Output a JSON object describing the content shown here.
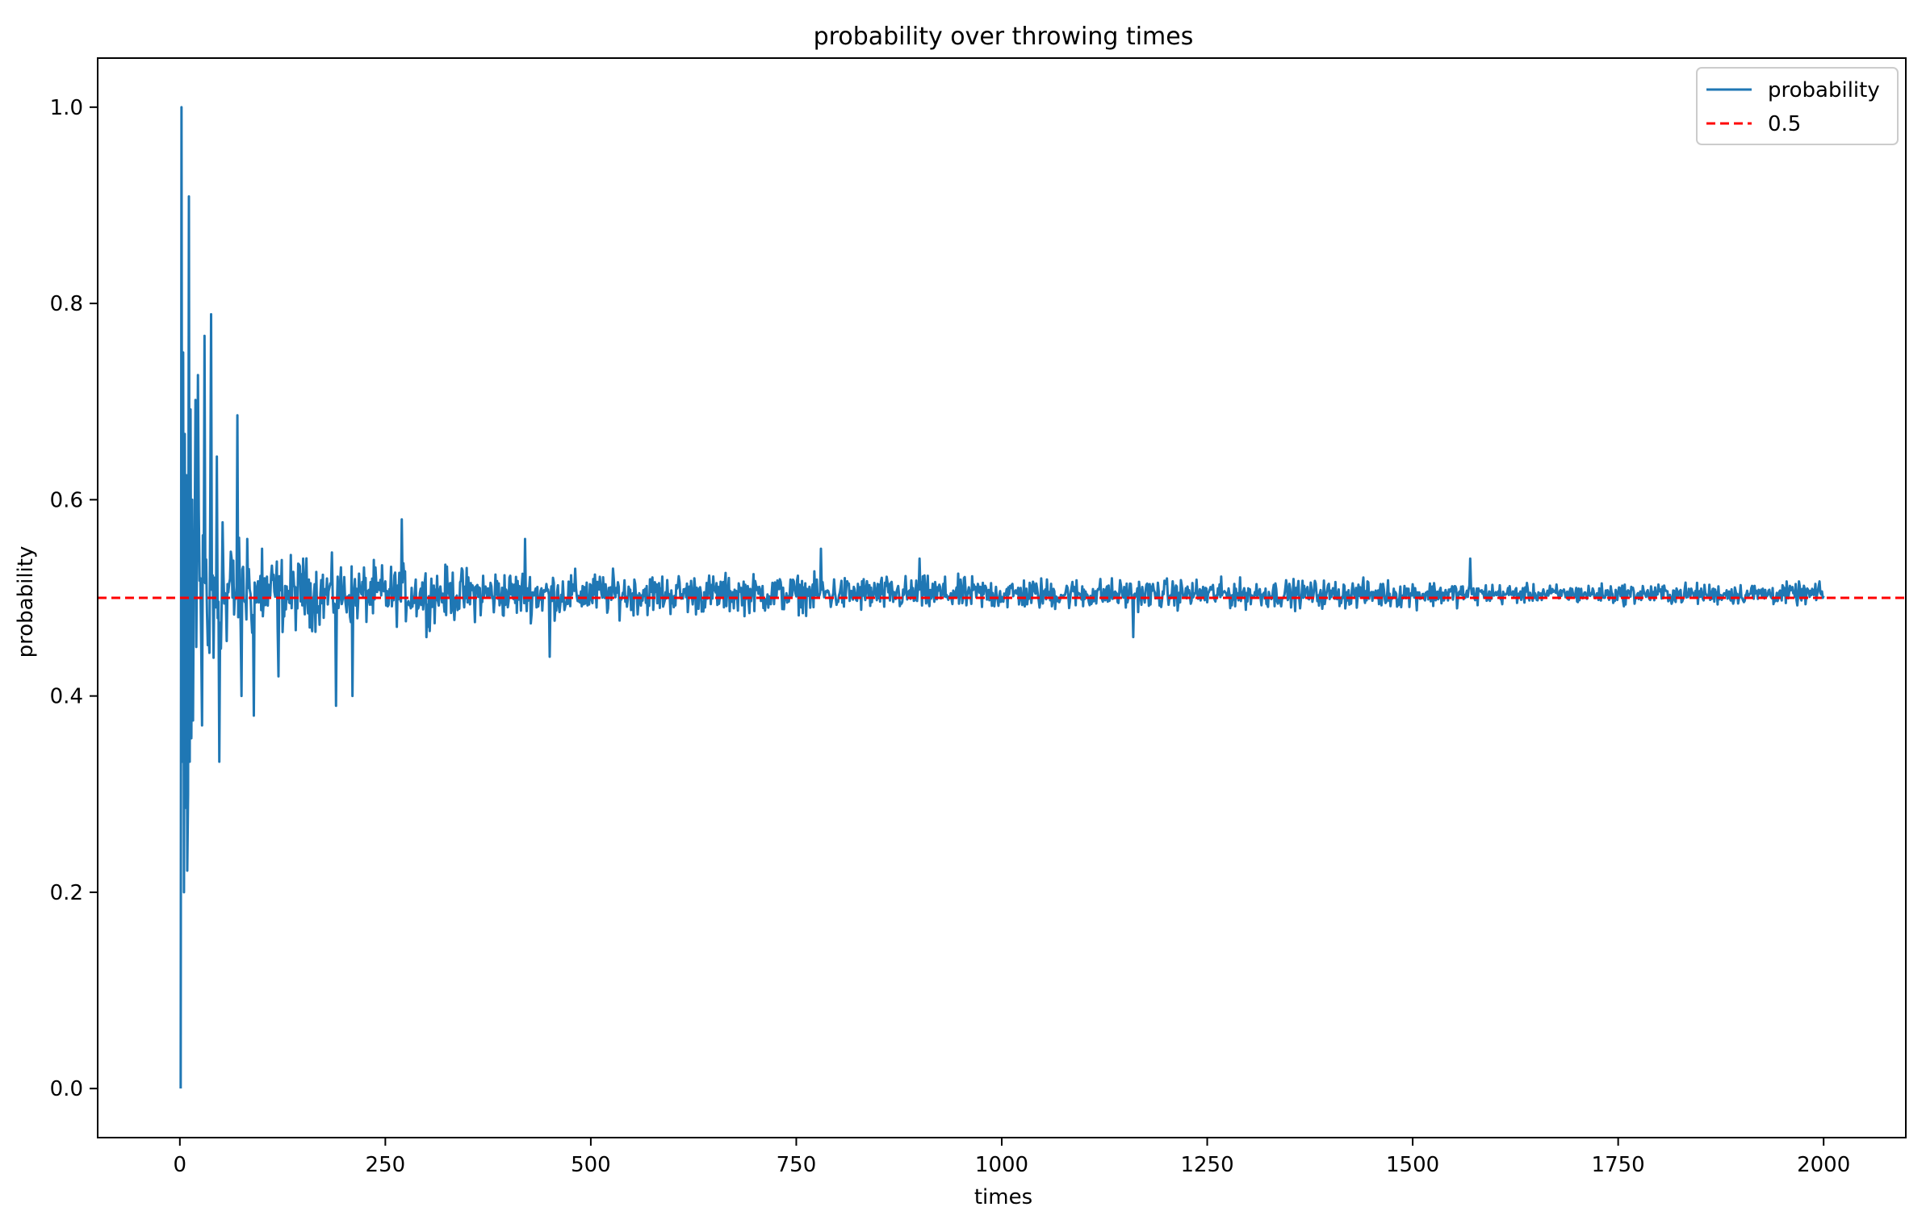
{
  "chart_data": {
    "type": "line",
    "title": "probability over throwing times",
    "xlabel": "times",
    "ylabel": "probability",
    "xlim": [
      -100,
      2100
    ],
    "ylim": [
      -0.05,
      1.05
    ],
    "xticks": [
      0,
      250,
      500,
      750,
      1000,
      1250,
      1500,
      1750,
      2000
    ],
    "xtick_labels": [
      "0",
      "250",
      "500",
      "750",
      "1000",
      "1250",
      "1500",
      "1750",
      "2000"
    ],
    "yticks": [
      0.0,
      0.2,
      0.4,
      0.6,
      0.8,
      1.0
    ],
    "ytick_labels": [
      "0.0",
      "0.2",
      "0.4",
      "0.6",
      "0.8",
      "1.0"
    ],
    "grid": false,
    "legend_position": "top-right",
    "series": [
      {
        "name": "probability",
        "color": "#1f77b4",
        "style": "solid",
        "x_range": [
          1,
          2000
        ],
        "initial_points": [
          [
            1,
            0.0
          ],
          [
            2,
            1.0
          ],
          [
            3,
            0.333
          ],
          [
            4,
            0.75
          ],
          [
            5,
            0.2
          ],
          [
            6,
            0.667
          ],
          [
            7,
            0.286
          ],
          [
            8,
            0.625
          ],
          [
            9,
            0.222
          ],
          [
            10,
            0.3
          ],
          [
            11,
            0.909
          ],
          [
            12,
            0.333
          ],
          [
            13,
            0.692
          ],
          [
            14,
            0.357
          ],
          [
            15,
            0.6
          ],
          [
            16,
            0.375
          ],
          [
            18,
            0.556
          ],
          [
            20,
            0.45
          ],
          [
            22,
            0.727
          ],
          [
            25,
            0.52
          ],
          [
            27,
            0.37
          ],
          [
            30,
            0.767
          ],
          [
            33,
            0.485
          ],
          [
            36,
            0.444
          ],
          [
            38,
            0.789
          ],
          [
            41,
            0.439
          ],
          [
            45,
            0.644
          ],
          [
            48,
            0.333
          ],
          [
            52,
            0.577
          ],
          [
            57,
            0.456
          ],
          [
            63,
            0.54
          ],
          [
            70,
            0.686
          ],
          [
            75,
            0.4
          ],
          [
            82,
            0.56
          ],
          [
            90,
            0.38
          ],
          [
            100,
            0.55
          ],
          [
            120,
            0.42
          ],
          [
            150,
            0.54
          ],
          [
            190,
            0.39
          ],
          [
            210,
            0.4
          ],
          [
            270,
            0.58
          ],
          [
            300,
            0.46
          ],
          [
            420,
            0.56
          ],
          [
            450,
            0.44
          ],
          [
            780,
            0.55
          ],
          [
            900,
            0.54
          ],
          [
            1160,
            0.46
          ],
          [
            1570,
            0.54
          ]
        ],
        "envelope": [
          [
            1,
            0.5
          ],
          [
            50,
            0.09
          ],
          [
            100,
            0.06
          ],
          [
            200,
            0.045
          ],
          [
            300,
            0.04
          ],
          [
            500,
            0.032
          ],
          [
            750,
            0.027
          ],
          [
            1000,
            0.024
          ],
          [
            1250,
            0.021
          ],
          [
            1500,
            0.02
          ],
          [
            1650,
            0.013
          ],
          [
            1750,
            0.015
          ],
          [
            2000,
            0.016
          ]
        ]
      },
      {
        "name": "0.5",
        "color": "#ff0000",
        "style": "dashed",
        "value": 0.5
      }
    ]
  }
}
